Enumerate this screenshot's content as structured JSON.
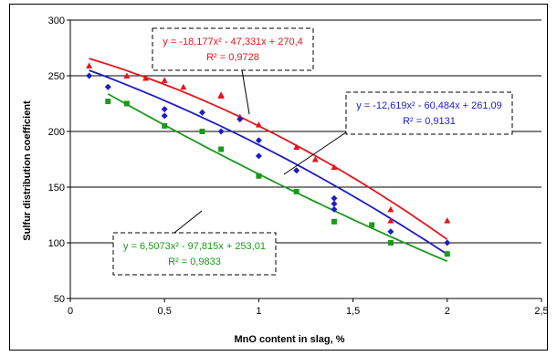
{
  "chart_data": {
    "type": "scatter",
    "xlabel": "MnO content in slag, %",
    "ylabel": "Sulfur distribution coefficient",
    "xlim": [
      0,
      2.5
    ],
    "ylim": [
      50,
      300
    ],
    "x_ticks": [
      "0",
      "0,5",
      "1",
      "1,5",
      "2",
      "2,5"
    ],
    "y_ticks": [
      "50",
      "100",
      "150",
      "200",
      "250",
      "300"
    ],
    "grid": "horizontal",
    "series": [
      {
        "color": "#e8141b",
        "marker": "triangle",
        "points": [
          [
            0.1,
            259
          ],
          [
            0.3,
            250
          ],
          [
            0.4,
            248
          ],
          [
            0.5,
            246
          ],
          [
            0.6,
            240
          ],
          [
            0.8,
            233
          ],
          [
            0.8,
            232
          ],
          [
            0.9,
            213
          ],
          [
            1.0,
            206
          ],
          [
            1.2,
            186
          ],
          [
            1.3,
            175
          ],
          [
            1.4,
            168
          ],
          [
            1.7,
            130
          ],
          [
            1.7,
            120
          ],
          [
            2.0,
            120
          ]
        ],
        "fit": {
          "a": -18.177,
          "b": -47.331,
          "c": 270.4
        },
        "equation": "y = -18,177x² - 47,331x + 270,4",
        "r2": "R² = 0,9728"
      },
      {
        "color": "#1c1cc8",
        "marker": "diamond",
        "points": [
          [
            0.1,
            250
          ],
          [
            0.2,
            240
          ],
          [
            0.5,
            220
          ],
          [
            0.5,
            214
          ],
          [
            0.7,
            217
          ],
          [
            0.8,
            200
          ],
          [
            0.9,
            211
          ],
          [
            1.0,
            192
          ],
          [
            1.0,
            178
          ],
          [
            1.2,
            165
          ],
          [
            1.4,
            140
          ],
          [
            1.4,
            135
          ],
          [
            1.4,
            130
          ],
          [
            1.7,
            110
          ],
          [
            2.0,
            100
          ]
        ],
        "fit": {
          "a": -12.619,
          "b": -60.484,
          "c": 261.09
        },
        "equation": "y = -12,619x² - 60,484x + 261,09",
        "r2": "R² = 0,9131"
      },
      {
        "color": "#1a9a1a",
        "marker": "square",
        "points": [
          [
            0.2,
            227
          ],
          [
            0.3,
            225
          ],
          [
            0.5,
            205
          ],
          [
            0.7,
            200
          ],
          [
            0.8,
            184
          ],
          [
            1.0,
            160
          ],
          [
            1.2,
            146
          ],
          [
            1.4,
            119
          ],
          [
            1.6,
            116
          ],
          [
            1.7,
            100
          ],
          [
            2.0,
            90
          ]
        ],
        "fit": {
          "a": 6.5073,
          "b": -97.815,
          "c": 253.01
        },
        "equation": "y = 6,5073x² - 97,815x + 253,01",
        "r2": "R² = 0,9833"
      }
    ]
  }
}
